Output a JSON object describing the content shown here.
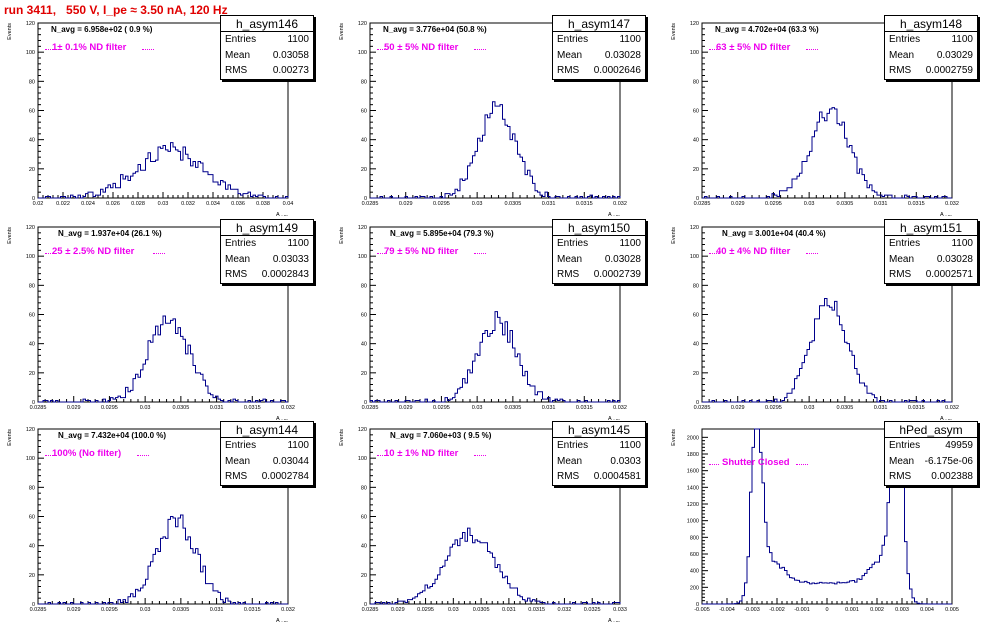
{
  "run_title": "run 3411,   550 V, I_pe ≈ 3.50 nA, 120 Hz",
  "colors": {
    "title": "#e00000",
    "hist_line": "#00008b",
    "filter_text": "#ee00ee",
    "axes": "#000000"
  },
  "chart_data": [
    {
      "type": "histogram",
      "name": "h_asym146",
      "ylabel": "Events",
      "xlabel": "A_uJD",
      "xlim": [
        0.02,
        0.04
      ],
      "ylim": [
        0,
        120
      ],
      "x_ticks": [
        "0.02",
        "0.022",
        "0.024",
        "0.026",
        "0.028",
        "0.03",
        "0.032",
        "0.034",
        "0.036",
        "0.038",
        "0.04"
      ],
      "y_ticks": [
        "0",
        "20",
        "40",
        "60",
        "80",
        "100",
        "120"
      ],
      "stats": {
        "entries": "1100",
        "mean": "0.03058",
        "rms": "0.00273"
      },
      "navg": "N_avg = 6.958e+02 ( 0.9 %)",
      "filter": "1± 0.1% ND filter",
      "shape": {
        "kind": "gauss",
        "mean": 0.03058,
        "rms": 0.00273,
        "peak": 33,
        "bins": 100,
        "noise": 6,
        "seed": 146
      }
    },
    {
      "type": "histogram",
      "name": "h_asym147",
      "ylabel": "Events",
      "xlabel": "A_uJD",
      "xlim": [
        0.0285,
        0.032
      ],
      "ylim": [
        0,
        120
      ],
      "x_ticks": [
        "0.0285",
        "0.029",
        "0.0295",
        "0.03",
        "0.0305",
        "0.031",
        "0.0315",
        "0.032"
      ],
      "y_ticks": [
        "0",
        "20",
        "40",
        "60",
        "80",
        "100",
        "120"
      ],
      "stats": {
        "entries": "1100",
        "mean": "0.03028",
        "rms": "0.0002646"
      },
      "navg": "N_avg = 3.776e+04 (50.8 %)",
      "filter": "50 ± 5% ND filter",
      "shape": {
        "kind": "gauss",
        "mean": 0.03028,
        "rms": 0.0002646,
        "peak": 60,
        "bins": 100,
        "noise": 7,
        "seed": 147
      }
    },
    {
      "type": "histogram",
      "name": "h_asym148",
      "ylabel": "Events",
      "xlabel": "A_uJD",
      "xlim": [
        0.0285,
        0.032
      ],
      "ylim": [
        0,
        120
      ],
      "x_ticks": [
        "0.0285",
        "0.029",
        "0.0295",
        "0.03",
        "0.0305",
        "0.031",
        "0.0315",
        "0.032"
      ],
      "y_ticks": [
        "0",
        "20",
        "40",
        "60",
        "80",
        "100",
        "120"
      ],
      "stats": {
        "entries": "1100",
        "mean": "0.03029",
        "rms": "0.0002759"
      },
      "navg": "N_avg = 4.702e+04 (63.3 %)",
      "filter": "63 ± 5% ND filter",
      "shape": {
        "kind": "gauss",
        "mean": 0.03029,
        "rms": 0.0002759,
        "peak": 60,
        "bins": 100,
        "noise": 7,
        "seed": 148
      }
    },
    {
      "type": "histogram",
      "name": "h_asym149",
      "ylabel": "Events",
      "xlabel": "A_uJD",
      "xlim": [
        0.0285,
        0.032
      ],
      "ylim": [
        0,
        120
      ],
      "x_ticks": [
        "0.0285",
        "0.029",
        "0.0295",
        "0.03",
        "0.0305",
        "0.031",
        "0.0315",
        "0.032"
      ],
      "y_ticks": [
        "0",
        "20",
        "40",
        "60",
        "80",
        "100",
        "120"
      ],
      "stats": {
        "entries": "1100",
        "mean": "0.03033",
        "rms": "0.0002843"
      },
      "navg": "N_avg = 1.937e+04 (26.1 %)",
      "filter": "25 ± 2.5% ND filter",
      "shape": {
        "kind": "gauss",
        "mean": 0.03033,
        "rms": 0.0002843,
        "peak": 57,
        "bins": 100,
        "noise": 7,
        "seed": 149
      }
    },
    {
      "type": "histogram",
      "name": "h_asym150",
      "ylabel": "Events",
      "xlabel": "A_uJD",
      "xlim": [
        0.0285,
        0.032
      ],
      "ylim": [
        0,
        120
      ],
      "x_ticks": [
        "0.0285",
        "0.029",
        "0.0295",
        "0.03",
        "0.0305",
        "0.031",
        "0.0315",
        "0.032"
      ],
      "y_ticks": [
        "0",
        "20",
        "40",
        "60",
        "80",
        "100",
        "120"
      ],
      "stats": {
        "entries": "1100",
        "mean": "0.03028",
        "rms": "0.0002739"
      },
      "navg": "N_avg = 5.895e+04 (79.3 %)",
      "filter": "79 ± 5% ND filter",
      "shape": {
        "kind": "gauss",
        "mean": 0.03028,
        "rms": 0.0002739,
        "peak": 55,
        "bins": 100,
        "noise": 7,
        "seed": 150
      }
    },
    {
      "type": "histogram",
      "name": "h_asym151",
      "ylabel": "Events",
      "xlabel": "A_uJD",
      "xlim": [
        0.0285,
        0.032
      ],
      "ylim": [
        0,
        120
      ],
      "x_ticks": [
        "0.0285",
        "0.029",
        "0.0295",
        "0.03",
        "0.0305",
        "0.031",
        "0.0315",
        "0.032"
      ],
      "y_ticks": [
        "0",
        "20",
        "40",
        "60",
        "80",
        "100",
        "120"
      ],
      "stats": {
        "entries": "1100",
        "mean": "0.03028",
        "rms": "0.0002571"
      },
      "navg": "N_avg = 3.001e+04 (40.4 %)",
      "filter": "40 ± 4% ND filter",
      "shape": {
        "kind": "gauss",
        "mean": 0.03028,
        "rms": 0.0002571,
        "peak": 68,
        "bins": 100,
        "noise": 6,
        "seed": 151
      }
    },
    {
      "type": "histogram",
      "name": "h_asym144",
      "ylabel": "Events",
      "xlabel": "A_uJD",
      "xlim": [
        0.0285,
        0.032
      ],
      "ylim": [
        0,
        120
      ],
      "x_ticks": [
        "0.0285",
        "0.029",
        "0.0295",
        "0.03",
        "0.0305",
        "0.031",
        "0.0315",
        "0.032"
      ],
      "y_ticks": [
        "0",
        "20",
        "40",
        "60",
        "80",
        "100",
        "120"
      ],
      "stats": {
        "entries": "1100",
        "mean": "0.03044",
        "rms": "0.0002784"
      },
      "navg": "N_avg = 7.432e+04 (100.0 %)",
      "filter": "100% (No filter)",
      "shape": {
        "kind": "gauss",
        "mean": 0.03044,
        "rms": 0.0002784,
        "peak": 57,
        "bins": 100,
        "noise": 7,
        "seed": 144
      }
    },
    {
      "type": "histogram",
      "name": "h_asym145",
      "ylabel": "Events",
      "xlabel": "A_uJD",
      "xlim": [
        0.0285,
        0.033
      ],
      "ylim": [
        0,
        120
      ],
      "x_ticks": [
        "0.0285",
        "0.029",
        "0.0295",
        "0.03",
        "0.0305",
        "0.031",
        "0.0315",
        "0.032",
        "0.0325",
        "0.033"
      ],
      "y_ticks": [
        "0",
        "20",
        "40",
        "60",
        "80",
        "100",
        "120"
      ],
      "stats": {
        "entries": "1100",
        "mean": "0.0303",
        "rms": "0.0004581"
      },
      "navg": "N_avg = 7.060e+03 ( 9.5 %)",
      "filter": "10 ± 1% ND filter",
      "shape": {
        "kind": "gauss",
        "mean": 0.0303,
        "rms": 0.0004581,
        "peak": 47,
        "bins": 100,
        "noise": 5,
        "seed": 145
      }
    },
    {
      "type": "histogram",
      "name": "hPed_asym",
      "ylabel": "Events",
      "xlabel": "",
      "xlim": [
        -0.005,
        0.005
      ],
      "ylim": [
        0,
        2100
      ],
      "x_ticks": [
        "-0.005",
        "-0.004",
        "-0.003",
        "-0.002",
        "-0.001",
        "0",
        "0.001",
        "0.002",
        "0.003",
        "0.004",
        "0.005"
      ],
      "y_ticks": [
        "0",
        "200",
        "400",
        "600",
        "800",
        "1000",
        "1200",
        "1400",
        "1600",
        "1800",
        "2000"
      ],
      "stats": {
        "entries": "49959",
        "mean": "-6.175e-06",
        "rms": "0.002388"
      },
      "navg": "",
      "filter": "Shutter Closed",
      "shape": {
        "kind": "bimodal",
        "bins": 100,
        "seed": 9
      }
    }
  ]
}
